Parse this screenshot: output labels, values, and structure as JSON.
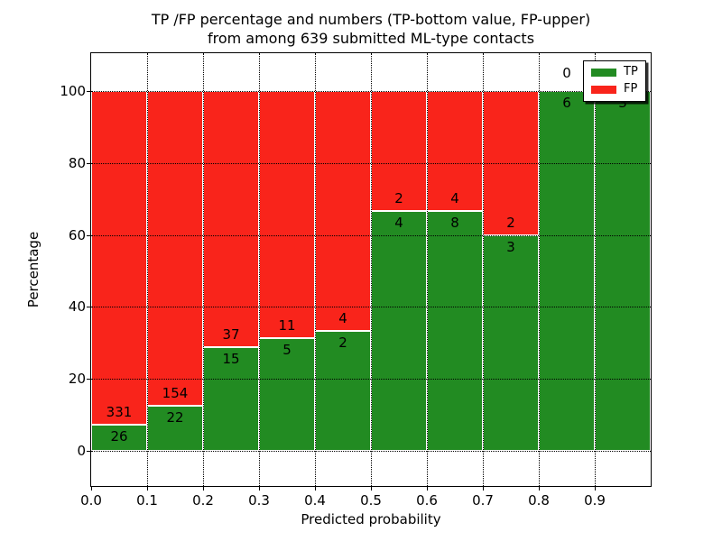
{
  "figure": {
    "title_line1": "TP /FP percentage and numbers (TP-bottom value, FP-upper)",
    "title_line2": "from among 639 submitted ML-type contacts",
    "xlabel": "Predicted probability",
    "ylabel": "Percentage"
  },
  "legend": {
    "items": [
      {
        "label": "TP",
        "color": "#228b22"
      },
      {
        "label": "FP",
        "color": "#f9241b"
      }
    ]
  },
  "axes": {
    "xtick_labels": [
      "0.0",
      "0.1",
      "0.2",
      "0.3",
      "0.4",
      "0.5",
      "0.6",
      "0.7",
      "0.8",
      "0.9"
    ],
    "ytick_values": [
      0,
      20,
      40,
      60,
      80,
      100
    ]
  },
  "chart_data": {
    "type": "bar",
    "stacked": true,
    "normalization": "each bar scaled to 100 percent; annotated numbers are raw counts (TP below boundary, FP above)",
    "title": "TP /FP percentage and numbers (TP-bottom value, FP-upper) from among 639 submitted ML-type contacts",
    "xlabel": "Predicted probability",
    "ylabel": "Percentage",
    "categories": [
      "0.0-0.1",
      "0.1-0.2",
      "0.2-0.3",
      "0.3-0.4",
      "0.4-0.5",
      "0.5-0.6",
      "0.6-0.7",
      "0.7-0.8",
      "0.8-0.9",
      "0.9-1.0"
    ],
    "series": [
      {
        "name": "TP",
        "color": "#228b22",
        "values": [
          26,
          22,
          15,
          5,
          2,
          4,
          8,
          3,
          6,
          3
        ]
      },
      {
        "name": "FP",
        "color": "#f9241b",
        "values": [
          331,
          154,
          37,
          11,
          4,
          2,
          4,
          2,
          0,
          0
        ]
      }
    ],
    "total_contacts": 639,
    "xlim": [
      0,
      1
    ],
    "ylim": [
      -10,
      110
    ],
    "grid": "dotted",
    "legend_position": "upper right"
  }
}
